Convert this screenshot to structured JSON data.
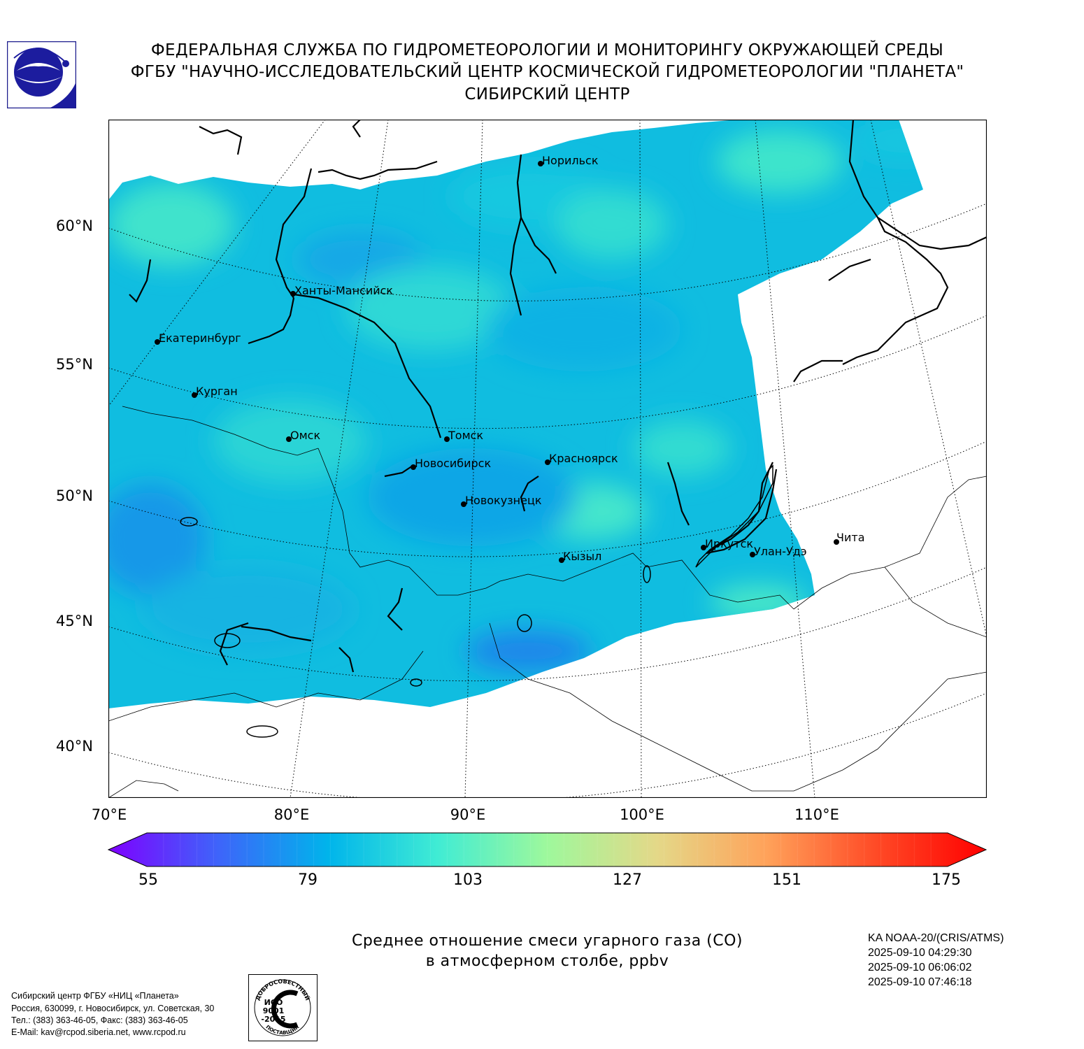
{
  "header": {
    "line1": "ФЕДЕРАЛЬНАЯ СЛУЖБА ПО ГИДРОМЕТЕОРОЛОГИИ И МОНИТОРИНГУ ОКРУЖАЮЩЕЙ СРЕДЫ",
    "line2": "ФГБУ \"НАУЧНО-ИССЛЕДОВАТЕЛЬСКИЙ ЦЕНТР КОСМИЧЕСКОЙ ГИДРОМЕТЕОРОЛОГИИ \"ПЛАНЕТА\"",
    "line3": "СИБИРСКИЙ ЦЕНТР"
  },
  "map": {
    "lat_labels": [
      "60°N",
      "55°N",
      "50°N",
      "45°N",
      "40°N"
    ],
    "lon_labels": [
      "70°E",
      "80°E",
      "90°E",
      "100°E",
      "110°E"
    ],
    "cities": [
      {
        "name": "Норильск"
      },
      {
        "name": "Ханты-Мансийск"
      },
      {
        "name": "Екатеринбург"
      },
      {
        "name": "Курган"
      },
      {
        "name": "Омск"
      },
      {
        "name": "Томск"
      },
      {
        "name": "Новосибирск"
      },
      {
        "name": "Красноярск"
      },
      {
        "name": "Новокузнецк"
      },
      {
        "name": "Кызыл"
      },
      {
        "name": "Иркутск"
      },
      {
        "name": "Улан-Удэ"
      },
      {
        "name": "Чита"
      }
    ],
    "colors": {
      "field_main": "#12c3e2",
      "field_low": "#1aa6e6",
      "field_high": "#44e6cc"
    }
  },
  "colorbar": {
    "min": 55,
    "max": 175,
    "ticks": [
      "55",
      "79",
      "103",
      "127",
      "151",
      "175"
    ],
    "extend": "both",
    "colors": [
      "#7f00ff",
      "#3e64fa",
      "#00b4eb",
      "#40ecd4",
      "#9ef89c",
      "#e4d888",
      "#ffa25a",
      "#ff4a26",
      "#ff0000"
    ]
  },
  "caption": {
    "line1": "Среднее отношение смеси угарного газа (CO)",
    "line2": "в атмосферном столбе, ppbv"
  },
  "satellite": {
    "name": "KA NOAA-20/(CRIS/ATMS)",
    "times": [
      "2025-09-10 04:29:30",
      "2025-09-10 06:06:02",
      "2025-09-10 07:46:18"
    ]
  },
  "footer": {
    "lines": [
      "Сибирский центр ФГБУ «НИЦ «Планета»",
      "Россия, 630099, г. Новосибирск, ул. Советская, 30",
      "Тел.: (383) 363-46-05, Факс: (383) 363-46-05",
      "E-Mail: kav@rcpod.siberia.net, www.rcpod.ru"
    ],
    "iso_badge": {
      "top_text": "ДОБРОСОВЕСТНЫЙ",
      "code1": "ИСО",
      "code2": "9001",
      "code3": "-2015",
      "bottom_text": "ПОСТАВЩИК"
    }
  }
}
